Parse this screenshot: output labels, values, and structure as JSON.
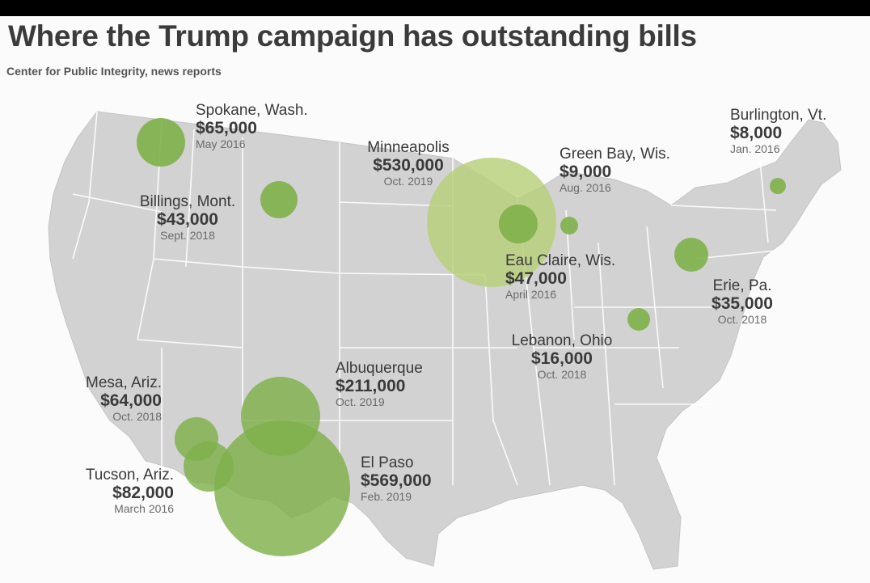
{
  "title": "Where the Trump campaign has outstanding bills",
  "source": "Center for Public Integrity, news reports",
  "colors": {
    "bubble_fill": "#7fb04a",
    "bubble_fill_light": "#b8d07a",
    "map_land": "#d2d2d2",
    "map_border": "#ffffff",
    "background": "#fbfbfb"
  },
  "locations": [
    {
      "city": "Spokane, Wash.",
      "amount": "$65,000",
      "date": "May 2016",
      "value": 65000
    },
    {
      "city": "Billings, Mont.",
      "amount": "$43,000",
      "date": "Sept. 2018",
      "value": 43000
    },
    {
      "city": "Minneapolis",
      "amount": "$530,000",
      "date": "Oct. 2019",
      "value": 530000
    },
    {
      "city": "Green Bay, Wis.",
      "amount": "$9,000",
      "date": "Aug. 2016",
      "value": 9000
    },
    {
      "city": "Burlington, Vt.",
      "amount": "$8,000",
      "date": "Jan. 2016",
      "value": 8000
    },
    {
      "city": "Eau Claire, Wis.",
      "amount": "$47,000",
      "date": "April 2016",
      "value": 47000
    },
    {
      "city": "Erie, Pa.",
      "amount": "$35,000",
      "date": "Oct. 2018",
      "value": 35000
    },
    {
      "city": "Lebanon, Ohio",
      "amount": "$16,000",
      "date": "Oct. 2018",
      "value": 16000
    },
    {
      "city": "Albuquerque",
      "amount": "$211,000",
      "date": "Oct. 2019",
      "value": 211000
    },
    {
      "city": "Mesa, Ariz.",
      "amount": "$64,000",
      "date": "Oct. 2018",
      "value": 64000
    },
    {
      "city": "Tucson, Ariz.",
      "amount": "$82,000",
      "date": "March 2016",
      "value": 82000
    },
    {
      "city": "El Paso",
      "amount": "$569,000",
      "date": "Feb. 2019",
      "value": 569000
    }
  ]
}
